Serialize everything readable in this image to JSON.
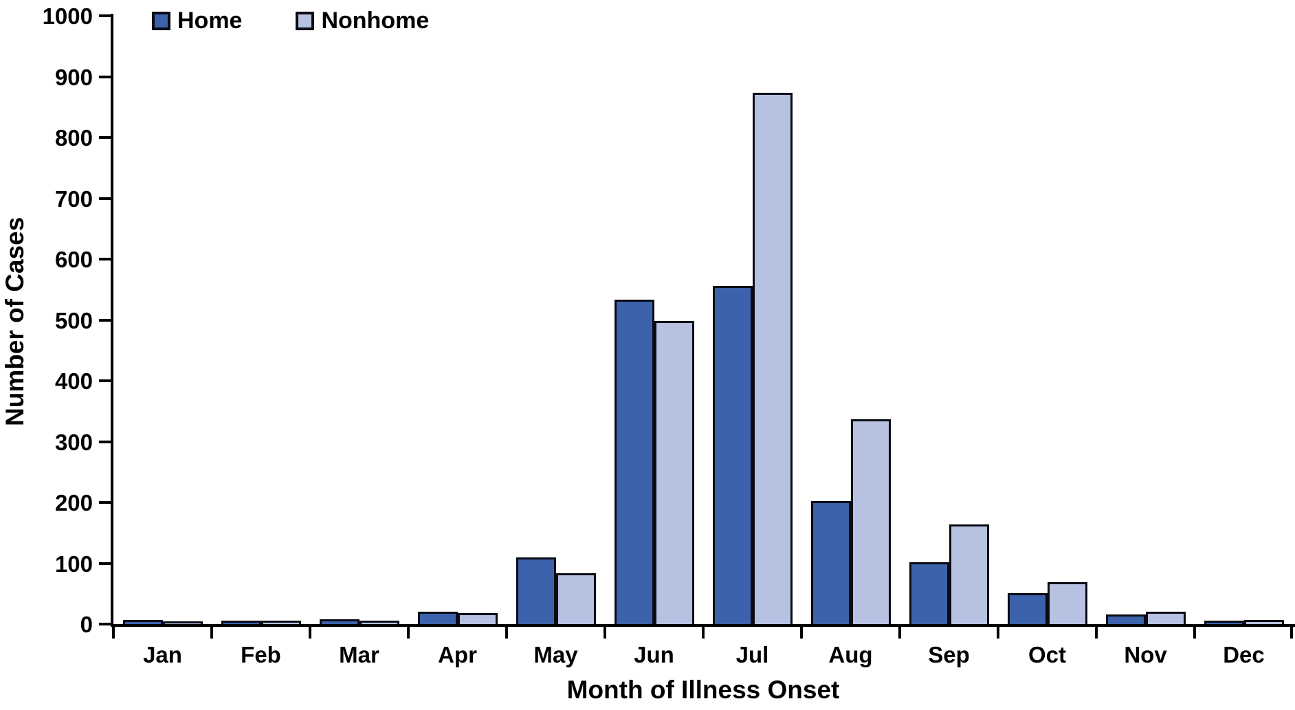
{
  "chart_data": {
    "type": "bar",
    "title": "",
    "xlabel": "Month of Illness Onset",
    "ylabel": "Number of Cases",
    "categories": [
      "Jan",
      "Feb",
      "Mar",
      "Apr",
      "May",
      "Jun",
      "Jul",
      "Aug",
      "Sep",
      "Oct",
      "Nov",
      "Dec"
    ],
    "series": [
      {
        "name": "Home",
        "color": "#3b62ab",
        "values": [
          3,
          2,
          5,
          17,
          106,
          530,
          553,
          199,
          98,
          48,
          12,
          2
        ]
      },
      {
        "name": "Nonhome",
        "color": "#b7c1e1",
        "values": [
          1,
          2,
          2,
          15,
          80,
          495,
          870,
          333,
          160,
          65,
          17,
          3
        ]
      }
    ],
    "ylim": [
      0,
      1000
    ],
    "ytick_step": 100,
    "yticks": [
      "0",
      "100",
      "200",
      "300",
      "400",
      "500",
      "600",
      "700",
      "800",
      "900",
      "1000"
    ],
    "legend_position": "top-left",
    "grid": false,
    "bar_outline": "#0b0b14"
  }
}
